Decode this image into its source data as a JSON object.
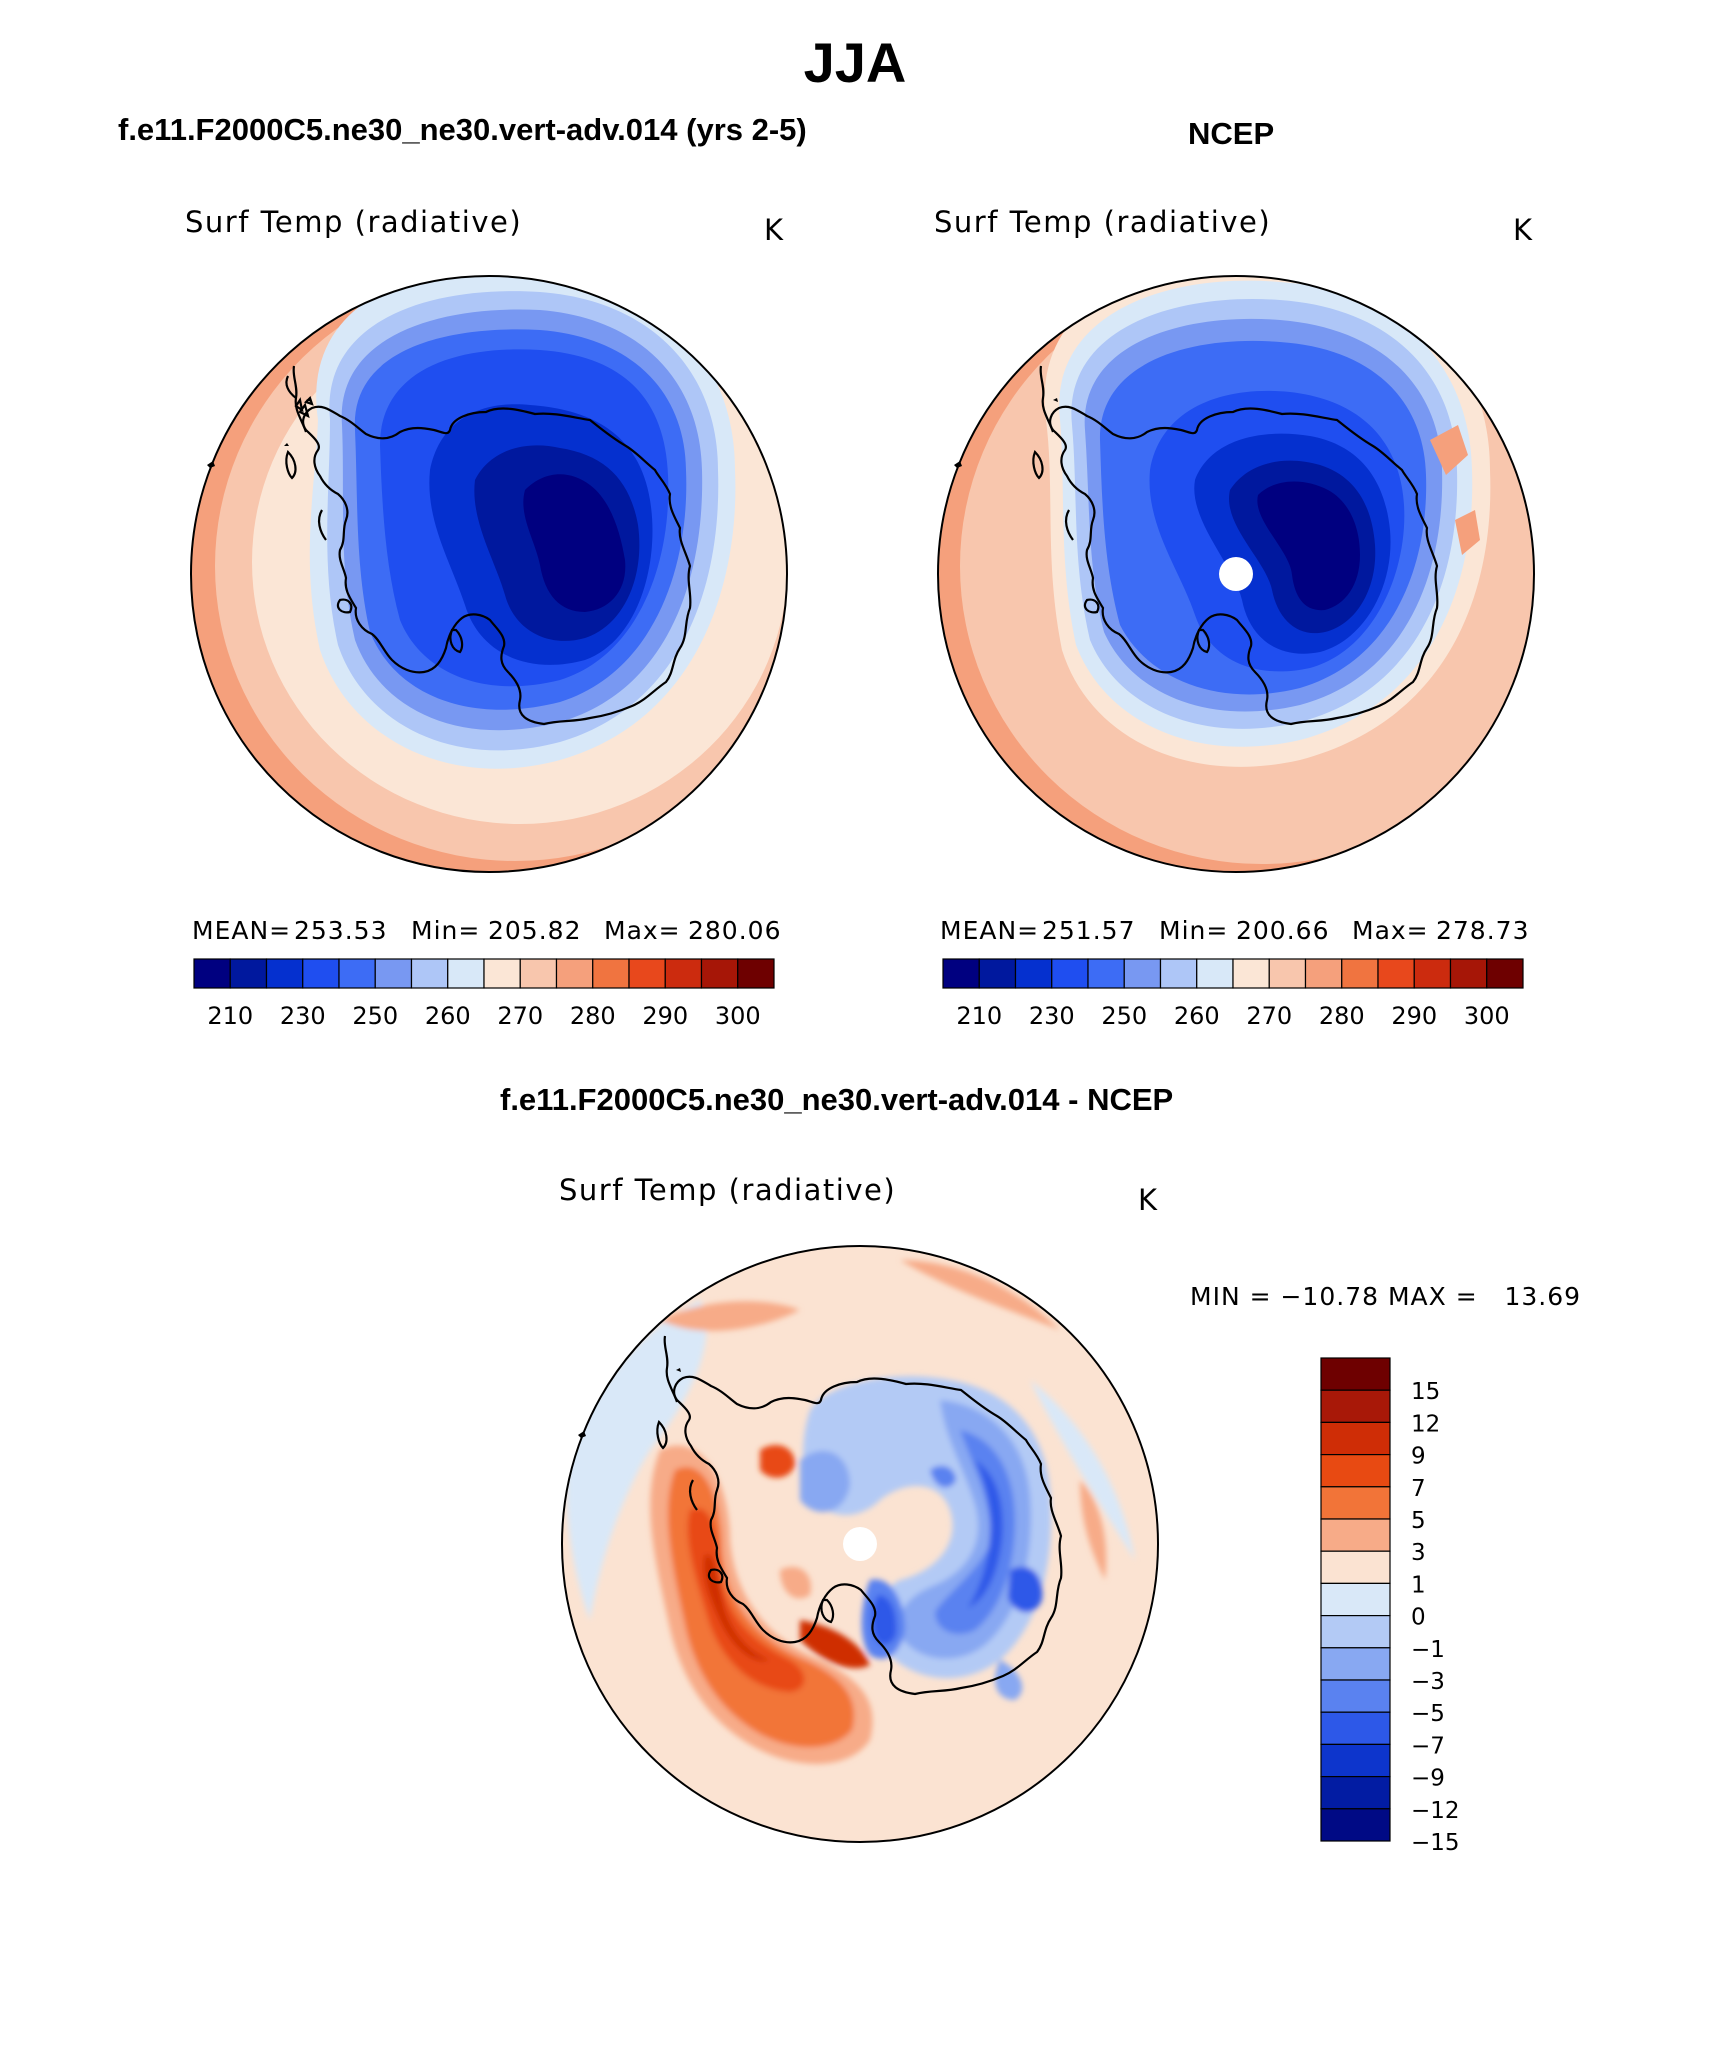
{
  "figure_title": "JJA",
  "panels": [
    {
      "heading": "f.e11.F2000C5.ne30_ne30.vert-adv.014 (yrs 2-5)",
      "variable": "Surf Temp (radiative)",
      "units": "K",
      "stats": {
        "mean_label": "MEAN=",
        "mean": "253.53",
        "min_label": "Min=",
        "min": "205.82",
        "max_label": "Max=",
        "max": "280.06"
      },
      "colorbar_ticks": [
        "210",
        "230",
        "250",
        "260",
        "270",
        "280",
        "290",
        "300"
      ]
    },
    {
      "heading": "NCEP",
      "variable": "Surf Temp (radiative)",
      "units": "K",
      "stats": {
        "mean_label": "MEAN=",
        "mean": "251.57",
        "min_label": "Min=",
        "min": "200.66",
        "max_label": "Max=",
        "max": "278.73"
      },
      "colorbar_ticks": [
        "210",
        "230",
        "250",
        "260",
        "270",
        "280",
        "290",
        "300"
      ]
    },
    {
      "heading": "f.e11.F2000C5.ne30_ne30.vert-adv.014 - NCEP",
      "variable": "Surf Temp (radiative)",
      "units": "K",
      "stats_text": "MIN = −10.78 MAX =   13.69",
      "colorbar_ticks": [
        "15",
        "12",
        "9",
        "7",
        "5",
        "3",
        "1",
        "0",
        "−1",
        "−3",
        "−5",
        "−7",
        "−9",
        "−12",
        "−15"
      ]
    }
  ],
  "palettes": {
    "absolute": [
      "#000080",
      "#00189e",
      "#0530cf",
      "#1f4ef0",
      "#3d6cf5",
      "#7898f2",
      "#aec6f7",
      "#d8e8f8",
      "#fbe6d6",
      "#f8c6ad",
      "#f5a07c",
      "#f07440",
      "#e8481c",
      "#cc2b0e",
      "#a61607",
      "#6e0000"
    ],
    "difference": [
      "#6e0000",
      "#a81808",
      "#cf2d06",
      "#e84a12",
      "#f27438",
      "#f7ab88",
      "#fbe3d2",
      "#d9e8f8",
      "#b3caf5",
      "#88a8f2",
      "#5a82f0",
      "#2d58e8",
      "#0d35cc",
      "#021ca3",
      "#000a85"
    ]
  }
}
